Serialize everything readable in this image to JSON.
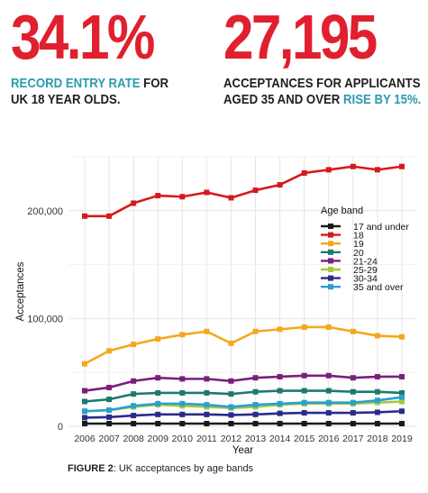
{
  "stats": [
    {
      "number": "34.1%",
      "highlight": "RECORD ENTRY RATE",
      "rest_line1": " FOR",
      "line2": "UK 18 YEAR OLDS."
    },
    {
      "number": "27,195",
      "line1": "ACCEPTANCES FOR APPLICANTS",
      "line2_prefix": "AGED 35 AND OVER ",
      "line2_highlight": "RISE BY 15%."
    }
  ],
  "figure_caption": {
    "label": "FIGURE 2",
    "text": ": UK acceptances by age bands"
  },
  "colors": {
    "accent_red": "#e0202e",
    "accent_teal": "#2a9bb0"
  },
  "chart_data": {
    "type": "line",
    "xlabel": "Year",
    "ylabel": "Acceptances",
    "ylim": [
      0,
      250000
    ],
    "yticks": [
      0,
      100000,
      200000
    ],
    "ytick_labels": [
      "0",
      "100,000",
      "200,000"
    ],
    "x": [
      2006,
      2007,
      2008,
      2009,
      2010,
      2011,
      2012,
      2013,
      2014,
      2015,
      2016,
      2017,
      2018,
      2019
    ],
    "grid": true,
    "legend": {
      "title": "Age band",
      "position": "right-inside"
    },
    "series": [
      {
        "name": "17 and under",
        "color": "#1a1a1a",
        "values": [
          2500,
          2500,
          2500,
          2500,
          2500,
          2500,
          2500,
          2500,
          2500,
          2500,
          2500,
          2500,
          2500,
          2500
        ]
      },
      {
        "name": "18",
        "color": "#d7191c",
        "values": [
          195000,
          195000,
          207000,
          214000,
          213000,
          217000,
          212000,
          219000,
          224000,
          235000,
          238000,
          241000,
          238000,
          241000
        ]
      },
      {
        "name": "19",
        "color": "#f4a81d",
        "values": [
          58000,
          70000,
          76000,
          81000,
          85000,
          88000,
          77000,
          88000,
          90000,
          92000,
          92000,
          88000,
          84000,
          83000
        ]
      },
      {
        "name": "20",
        "color": "#1b7a6e",
        "values": [
          23000,
          25000,
          30000,
          31000,
          31000,
          31000,
          30000,
          32000,
          33000,
          33000,
          33000,
          32000,
          32000,
          31000
        ]
      },
      {
        "name": "21-24",
        "color": "#7b1f7b",
        "values": [
          33000,
          36000,
          42000,
          45000,
          44000,
          44000,
          42000,
          45000,
          46000,
          47000,
          47000,
          45000,
          46000,
          46000
        ]
      },
      {
        "name": "25-29",
        "color": "#a6c93b",
        "values": [
          14000,
          15000,
          18000,
          20000,
          19000,
          18000,
          17000,
          18000,
          20000,
          21000,
          21000,
          21000,
          22000,
          23000
        ]
      },
      {
        "name": "30-34",
        "color": "#2b2b8c",
        "values": [
          8000,
          8500,
          10000,
          11000,
          11000,
          11000,
          10500,
          11000,
          12000,
          12500,
          12500,
          12500,
          13000,
          14000
        ]
      },
      {
        "name": "35 and over",
        "color": "#2a9fd0",
        "values": [
          14000,
          15000,
          19000,
          21000,
          21000,
          20000,
          18000,
          20000,
          21000,
          22000,
          22000,
          22000,
          24000,
          27000
        ]
      }
    ]
  }
}
